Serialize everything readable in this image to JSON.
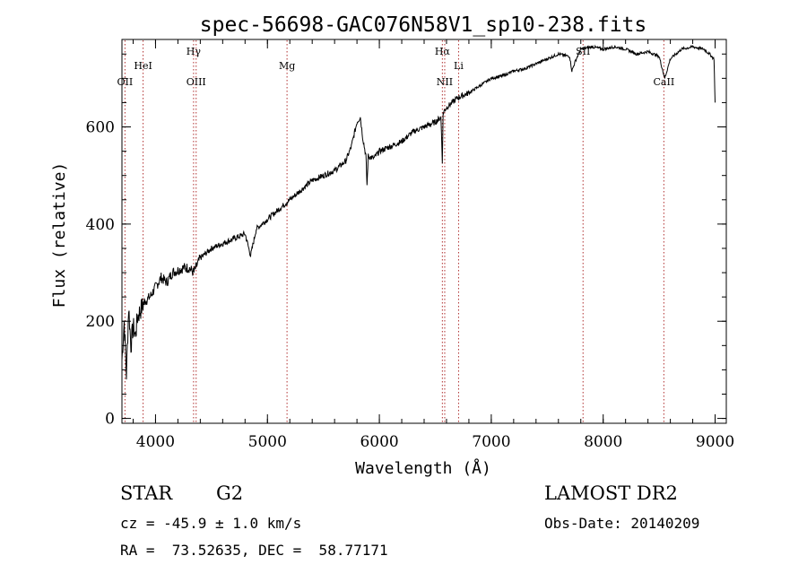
{
  "chart_data": {
    "type": "line",
    "title": "spec-56698-GAC076N58V1_sp10-238.fits",
    "xlabel": "Wavelength (Å)",
    "ylabel": "Flux (relative)",
    "xlim": [
      3700,
      9100
    ],
    "ylim": [
      -10,
      780
    ],
    "x_ticks": [
      4000,
      5000,
      6000,
      7000,
      8000,
      9000
    ],
    "y_ticks": [
      0,
      200,
      400,
      600
    ],
    "series": [
      {
        "name": "spectrum",
        "x": [
          3700,
          3720,
          3740,
          3760,
          3780,
          3800,
          3820,
          3840,
          3860,
          3880,
          3900,
          3950,
          4000,
          4050,
          4100,
          4150,
          4200,
          4250,
          4300,
          4340,
          4400,
          4500,
          4600,
          4700,
          4800,
          4850,
          4900,
          5000,
          5100,
          5200,
          5300,
          5400,
          5500,
          5600,
          5700,
          5750,
          5800,
          5830,
          5850,
          5880,
          5890,
          5900,
          5950,
          6000,
          6100,
          6200,
          6300,
          6400,
          6500,
          6550,
          6563,
          6570,
          6600,
          6700,
          6800,
          6900,
          7000,
          7100,
          7200,
          7300,
          7400,
          7500,
          7600,
          7700,
          7720,
          7750,
          7800,
          7900,
          8000,
          8100,
          8200,
          8300,
          8400,
          8500,
          8550,
          8600,
          8650,
          8700,
          8800,
          8900,
          8950,
          8990,
          9000
        ],
        "y": [
          120,
          200,
          90,
          230,
          150,
          190,
          170,
          210,
          220,
          230,
          240,
          250,
          270,
          290,
          280,
          300,
          305,
          310,
          310,
          300,
          330,
          350,
          360,
          370,
          380,
          335,
          390,
          410,
          430,
          450,
          470,
          490,
          500,
          510,
          530,
          560,
          610,
          620,
          580,
          540,
          480,
          540,
          535,
          550,
          560,
          570,
          590,
          600,
          610,
          620,
          530,
          630,
          640,
          660,
          670,
          685,
          700,
          705,
          715,
          720,
          730,
          740,
          750,
          745,
          715,
          735,
          760,
          765,
          760,
          765,
          760,
          750,
          755,
          745,
          700,
          740,
          750,
          760,
          765,
          760,
          750,
          740,
          650
        ]
      }
    ],
    "reference_lines": [
      {
        "label": "OII",
        "x": 3727,
        "row": 3
      },
      {
        "label": "HeI",
        "x": 3889,
        "row": 2
      },
      {
        "label": "Hγ",
        "x": 4340,
        "row": 1
      },
      {
        "label": "OIII",
        "x": 4363,
        "row": 3
      },
      {
        "label": "Mg",
        "x": 5175,
        "row": 2
      },
      {
        "label": "Hα",
        "x": 6563,
        "row": 1
      },
      {
        "label": "NII",
        "x": 6584,
        "row": 3
      },
      {
        "label": "Li",
        "x": 6708,
        "row": 2
      },
      {
        "label": "SII",
        "x": 7820,
        "row": 1
      },
      {
        "label": "CaII",
        "x": 8542,
        "row": 3
      }
    ]
  },
  "info": {
    "object_class": "STAR",
    "subclass": "G2",
    "survey": "LAMOST DR2",
    "velocity": "cz = -45.9 ± 1.0 km/s",
    "obs_date": "Obs-Date: 20140209",
    "coordinates": "RA =  73.52635, DEC =  58.77171"
  },
  "colors": {
    "spectrum": "#000000",
    "reference_line": "#b03030",
    "background": "#ffffff"
  }
}
